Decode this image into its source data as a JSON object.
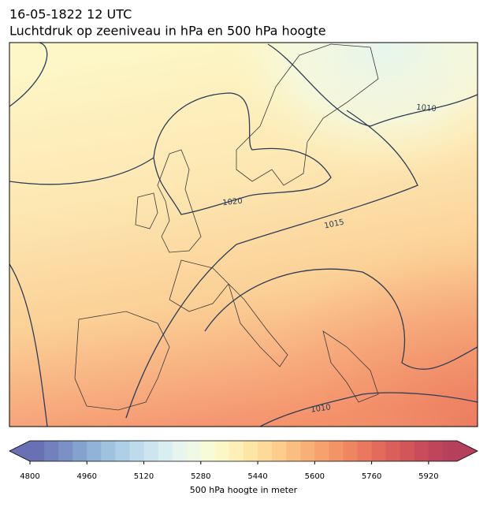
{
  "title": "16-05-1822 12 UTC",
  "subtitle": "Luchtdruk op zeeniveau in hPa en 500 hPa hoogte",
  "contour_labels": [
    "1010",
    "1020",
    "1015",
    "1010"
  ],
  "colorbar": {
    "lim": [
      4800,
      6000
    ],
    "ticks": [
      4800,
      4960,
      5120,
      5280,
      5440,
      5600,
      5760,
      5920
    ],
    "label": "500 hPa hoogte in meter",
    "colors": [
      "#6a70b4",
      "#7280bd",
      "#7b91c6",
      "#85a2cf",
      "#91b3d7",
      "#9fc2df",
      "#aecfe6",
      "#bedbeb",
      "#cce5ee",
      "#d9eef0",
      "#e6f5ee",
      "#f0f9e6",
      "#f8fbd8",
      "#fcf7c6",
      "#fdefb6",
      "#fde5a6",
      "#fdda99",
      "#fccd8c",
      "#fbbe81",
      "#f9b077",
      "#f7a26e",
      "#f39467",
      "#ef8662",
      "#e9785e",
      "#e26b5b",
      "#da5f5a",
      "#d15559",
      "#c84c5a",
      "#bf455b",
      "#b63f5c"
    ]
  }
}
